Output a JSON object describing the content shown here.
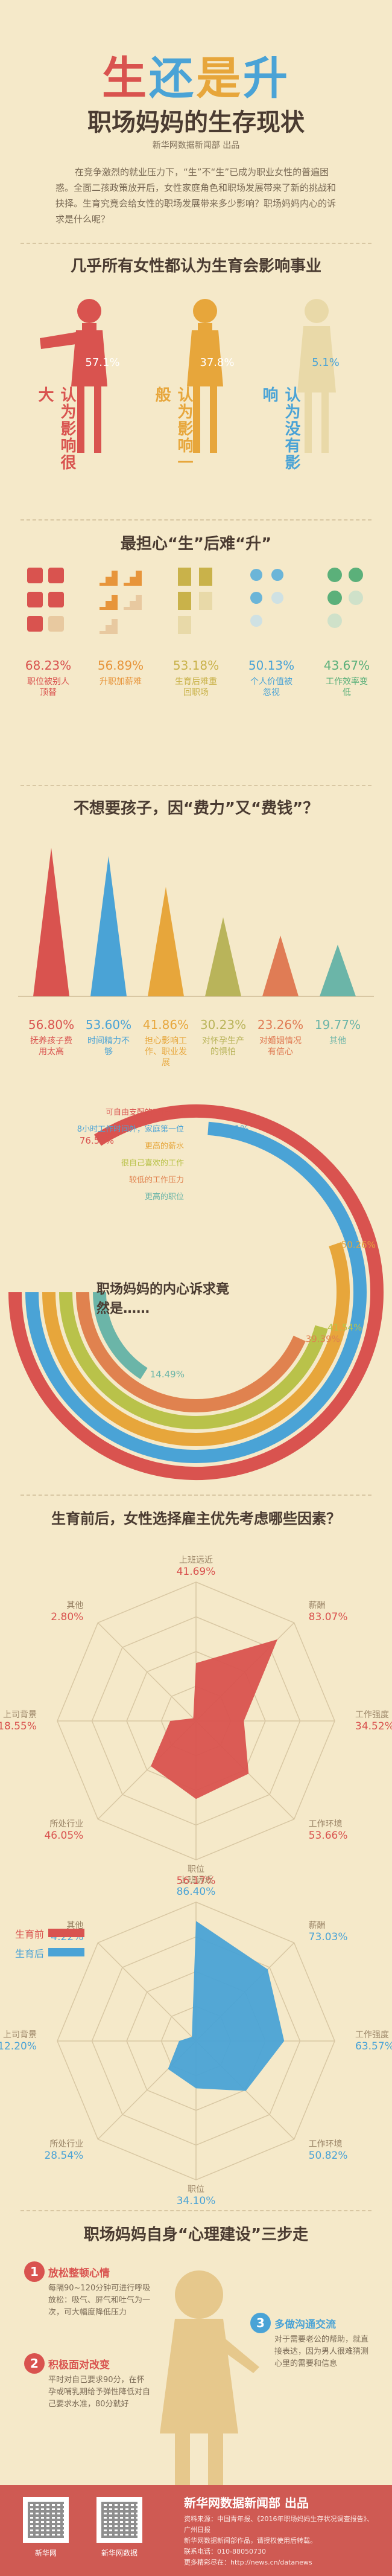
{
  "title": {
    "chars": [
      "生",
      "还",
      "是",
      "升"
    ],
    "colors": [
      "#d9534f",
      "#4aa3d6",
      "#e7a63b",
      "#4aa3d6"
    ]
  },
  "subtitle": "职场妈妈的生存现状",
  "source_line": "新华网数据新闻部 出品",
  "intro": "在竞争激烈的就业压力下，“生”不“生”已成为职业女性的普遍困惑。全面二孩政策放开后，女性家庭角色和职场发展带来了新的挑战和抉择。生育究竟会给女性的职场发展带来多少影响？职场妈妈内心的诉求是什么呢？",
  "section1": {
    "title": "几乎所有女性都认为生育会影响事业",
    "items": [
      {
        "pct": "57.1%",
        "text": "认为影响很大",
        "color": "#d9534f"
      },
      {
        "pct": "37.8%",
        "text": "认为影响一般",
        "color": "#e7a63b"
      },
      {
        "pct": "5.1%",
        "text": "认为没有影响",
        "color": "#6bb5d8"
      }
    ]
  },
  "section2": {
    "title": "最担心“生”后难“升”",
    "items": [
      {
        "pct": "68.23%",
        "text": "职位被别人顶替",
        "color": "#d9534f"
      },
      {
        "pct": "56.89%",
        "text": "升职加薪难",
        "color": "#e7953b"
      },
      {
        "pct": "53.18%",
        "text": "生育后难重回职场",
        "color": "#c9b24a"
      },
      {
        "pct": "50.13%",
        "text": "个人价值被忽视",
        "color": "#6bb5d8"
      },
      {
        "pct": "43.67%",
        "text": "工作效率变低",
        "color": "#5bb07a"
      }
    ]
  },
  "section3": {
    "title": "不想要孩子，因“费力”又“费钱”？",
    "items": [
      {
        "pct": "56.80%",
        "text": "抚养孩子费用太高",
        "color": "#d9534f"
      },
      {
        "pct": "53.60%",
        "text": "时间精力不够",
        "color": "#4aa3d6"
      },
      {
        "pct": "41.86%",
        "text": "担心影响工作、职业发展",
        "color": "#e7a63b"
      },
      {
        "pct": "30.23%",
        "text": "对怀孕生产的惧怕",
        "color": "#b9b45a"
      },
      {
        "pct": "23.26%",
        "text": "对婚姻情况有信心",
        "color": "#e07c55"
      },
      {
        "pct": "19.77%",
        "text": "其他",
        "color": "#6bb5a8"
      }
    ]
  },
  "section4": {
    "center_title": "职场妈妈的内心诉求竟然是……",
    "arcs": [
      {
        "label": "可自由支配的工作时间",
        "pct": "76.50%",
        "value": 76.5,
        "color": "#d9534f"
      },
      {
        "label": "8小时工作时间外，家庭第一位",
        "pct": "67.11%",
        "value": 67.11,
        "color": "#4aa3d6"
      },
      {
        "label": "更高的薪水",
        "pct": "50.26%",
        "value": 50.26,
        "color": "#e7a63b"
      },
      {
        "label": "很自己喜欢的工作",
        "pct": "41.54%",
        "value": 41.54,
        "color": "#b9c24a"
      },
      {
        "label": "较低的工作压力",
        "pct": "39.39%",
        "value": 39.39,
        "color": "#e0824f"
      },
      {
        "label": "更高的职位",
        "pct": "14.49%",
        "value": 14.49,
        "color": "#6bb5a8"
      }
    ]
  },
  "section5": {
    "title": "生育前后，女性选择雇主优先考虑哪些因素？",
    "legend_before": "生育前",
    "legend_after": "生育后",
    "before": [
      {
        "name": "上班远近",
        "pct": "41.69%",
        "value": 41.69
      },
      {
        "name": "薪酬",
        "pct": "83.07%",
        "value": 83.07
      },
      {
        "name": "工作强度",
        "pct": "34.52%",
        "value": 34.52
      },
      {
        "name": "工作环境",
        "pct": "53.66%",
        "value": 53.66
      },
      {
        "name": "职位",
        "pct": "56.17%",
        "value": 56.17
      },
      {
        "name": "所处行业",
        "pct": "46.05%",
        "value": 46.05
      },
      {
        "name": "上司背景",
        "pct": "18.55%",
        "value": 18.55
      },
      {
        "name": "其他",
        "pct": "2.80%",
        "value": 2.8
      }
    ],
    "after": [
      {
        "name": "上班远近",
        "pct": "86.40%",
        "value": 86.4
      },
      {
        "name": "薪酬",
        "pct": "73.03%",
        "value": 73.03
      },
      {
        "name": "工作强度",
        "pct": "63.57%",
        "value": 63.57
      },
      {
        "name": "工作环境",
        "pct": "50.82%",
        "value": 50.82
      },
      {
        "name": "职位",
        "pct": "34.10%",
        "value": 34.1
      },
      {
        "name": "所处行业",
        "pct": "28.54%",
        "value": 28.54
      },
      {
        "name": "上司背景",
        "pct": "12.20%",
        "value": 12.2
      },
      {
        "name": "其他",
        "pct": "4.22%",
        "value": 4.22
      }
    ],
    "before_color": "#d9534f",
    "after_color": "#4aa3d6"
  },
  "section6": {
    "title": "职场妈妈自身“心理建设”三步走",
    "steps": [
      {
        "num": "1",
        "head": "放松整顿心情",
        "body": "每隔90~120分钟可进行呼吸放松：吸气、屏气和吐气为一次，可大幅度降低压力"
      },
      {
        "num": "2",
        "head": "积极面对改变",
        "body": "平时对自己要求90分，在怀孕或哺乳期给予弹性降低对自己要求水准，80分就好"
      },
      {
        "num": "3",
        "head": "多做沟通交流",
        "body": "对于需要老公的帮助，就直接表达，因为男人很难猜测心里的需要和信息"
      }
    ]
  },
  "chart_data": [
    {
      "type": "bar",
      "title": "几乎所有女性都认为生育会影响事业",
      "categories": [
        "影响很大",
        "影响一般",
        "没有影响"
      ],
      "values": [
        57.1,
        37.8,
        5.1
      ],
      "unit": "%"
    },
    {
      "type": "bar",
      "title": "最担心“生”后难“升”",
      "categories": [
        "职位被别人顶替",
        "升职加薪难",
        "生育后难重回职场",
        "个人价值被忽视",
        "工作效率变低"
      ],
      "values": [
        68.23,
        56.89,
        53.18,
        50.13,
        43.67
      ],
      "unit": "%"
    },
    {
      "type": "bar",
      "title": "不想要孩子，因“费力”又“费钱”？",
      "categories": [
        "抚养孩子费用太高",
        "时间精力不够",
        "担心影响工作、职业发展",
        "对怀孕生产的惧怕",
        "对婚姻情况有信心",
        "其他"
      ],
      "values": [
        56.8,
        53.6,
        41.86,
        30.23,
        23.26,
        19.77
      ],
      "unit": "%"
    },
    {
      "type": "bar",
      "title": "职场妈妈的内心诉求竟然是……",
      "categories": [
        "可自由支配的工作时间",
        "8小时工作时间外，家庭第一位",
        "更高的薪水",
        "很自己喜欢的工作",
        "较低的工作压力",
        "更高的职位"
      ],
      "values": [
        76.5,
        67.11,
        50.26,
        41.54,
        39.39,
        14.49
      ],
      "unit": "%"
    },
    {
      "type": "radar",
      "title": "生育前后，女性选择雇主优先考虑哪些因素？",
      "categories": [
        "上班远近",
        "薪酬",
        "工作强度",
        "工作环境",
        "职位",
        "所处行业",
        "上司背景",
        "其他"
      ],
      "series": [
        {
          "name": "生育前",
          "values": [
            41.69,
            83.07,
            34.52,
            53.66,
            56.17,
            46.05,
            18.55,
            2.8
          ]
        },
        {
          "name": "生育后",
          "values": [
            86.4,
            73.03,
            63.57,
            50.82,
            34.1,
            28.54,
            12.2,
            4.22
          ]
        }
      ],
      "unit": "%"
    }
  ],
  "footer": {
    "brand": "新华网数据新闻部 出品",
    "qr1": "新华网",
    "qr2": "新华网数据",
    "lines": [
      "资料来源：中国青年报、《2016年职场妈妈生存状况调查报告》、广州日报",
      "新华网数据新闻部作品，请授权使用后转载。",
      "联系电话：010-88050730",
      "更多精彩尽在：http://news.cn/datanews"
    ]
  }
}
